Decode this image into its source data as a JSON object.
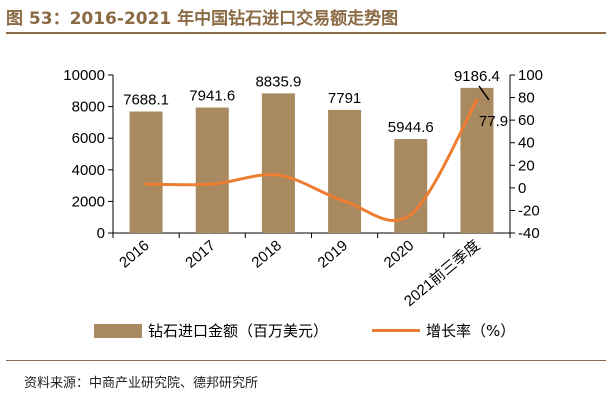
{
  "figure_title": "图 53：2016-2021 年中国钻石进口交易额走势图",
  "source_note": "资料来源：中商产业研究院、德邦研究所",
  "colors": {
    "bar": "#a98a60",
    "line": "#ed7d31",
    "accent": "#8b6b45"
  },
  "chart_data": {
    "type": "bar",
    "categories": [
      "2016",
      "2017",
      "2018",
      "2019",
      "2020",
      "2021前三季度"
    ],
    "series": [
      {
        "name": "钻石进口金额（百万美元）",
        "type": "bar",
        "axis": "left",
        "values": [
          7688.1,
          7941.6,
          8835.9,
          7791,
          5944.6,
          9186.4
        ],
        "labels": [
          "7688.1",
          "7941.6",
          "8835.9",
          "7791",
          "5944.6",
          "9186.4"
        ]
      },
      {
        "name": "增长率（%）",
        "type": "line",
        "axis": "right",
        "values": [
          3.3,
          3.3,
          11.3,
          -11.8,
          -23.7,
          77.9
        ],
        "labeled": [
          "77.9"
        ]
      }
    ],
    "y_left": {
      "lim": [
        0,
        10000
      ],
      "ticks": [
        "0",
        "2000",
        "4000",
        "6000",
        "8000",
        "10000"
      ]
    },
    "y_right": {
      "lim": [
        -40,
        100
      ],
      "ticks": [
        "-40",
        "-20",
        "0",
        "20",
        "40",
        "60",
        "80",
        "100"
      ]
    },
    "grid": false,
    "legend": "bottom"
  }
}
